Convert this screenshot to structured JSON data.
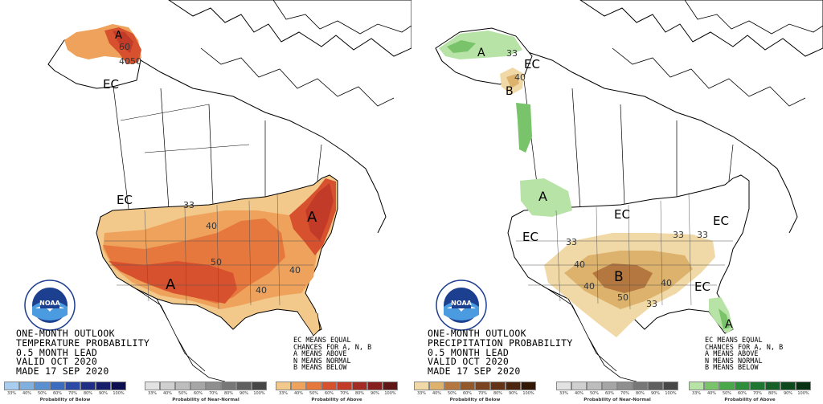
{
  "colors": {
    "above_33": "#f2c98b",
    "above_40": "#eea25c",
    "above_50": "#e6783d",
    "above_60": "#d8512f",
    "above_70": "#c23b28",
    "below_precip_33": "#f0d9a6",
    "below_precip_40": "#ddb26c",
    "below_precip_50": "#b4773f",
    "above_precip_33": "#b8e3a6",
    "above_precip_40": "#79c36a"
  },
  "left_panel": {
    "info_lines": [
      "ONE-MONTH OUTLOOK",
      "TEMPERATURE PROBABILITY",
      "0.5 MONTH LEAD",
      "VALID OCT 2020",
      "MADE 17 SEP 2020"
    ],
    "legend_lines": [
      "EC MEANS EQUAL",
      "CHANCES FOR A, N, B",
      "A MEANS ABOVE",
      "N MEANS NORMAL",
      "B MEANS BELOW"
    ],
    "map_labels": {
      "ec_alaska": "EC",
      "ec_west": "EC",
      "a_alaska": "A",
      "a_southwest": "A",
      "a_northeast": "A",
      "c33": "33",
      "c40": "40",
      "c50": "50",
      "c40b": "40",
      "c40c": "40",
      "ak40": "40",
      "ak50": "50",
      "ak60": "60"
    },
    "scales": [
      {
        "caption": "Probability of Below",
        "ticks": [
          "33%",
          "40%",
          "50%",
          "60%",
          "70%",
          "80%",
          "90%",
          "100%"
        ],
        "colors": [
          "#a9cdef",
          "#7fb0e0",
          "#5a8fd0",
          "#3c6cbf",
          "#2b4aa6",
          "#1f2f86",
          "#161d6b",
          "#0d1050"
        ]
      },
      {
        "caption": "Probability of Near-Normal",
        "ticks": [
          "33%",
          "40%",
          "50%",
          "60%",
          "70%",
          "80%",
          "90%",
          "100%"
        ],
        "colors": [
          "#e2e2e2",
          "#cfcfcf",
          "#bdbdbd",
          "#a6a6a6",
          "#8f8f8f",
          "#777777",
          "#5f5f5f",
          "#474747"
        ]
      },
      {
        "caption": "Probability of Above",
        "ticks": [
          "33%",
          "40%",
          "50%",
          "60%",
          "70%",
          "80%",
          "90%",
          "100%"
        ],
        "colors": [
          "#f2c98b",
          "#eea25c",
          "#e6783d",
          "#d8512f",
          "#c23b28",
          "#a42a24",
          "#86201f",
          "#5e1714"
        ]
      }
    ]
  },
  "right_panel": {
    "info_lines": [
      "ONE-MONTH OUTLOOK",
      "PRECIPITATION PROBABILITY",
      "0.5 MONTH LEAD",
      "VALID OCT 2020",
      "MADE 17 SEP 2020"
    ],
    "legend_lines": [
      "EC MEANS EQUAL",
      "CHANCES FOR A, N, B",
      "A MEANS ABOVE",
      "N MEANS NORMAL",
      "B MEANS BELOW"
    ],
    "map_labels": {
      "a_alaska": "A",
      "ec_alaska": "EC",
      "b_panhandle": "B",
      "a_northwest": "A",
      "ec_central": "EC",
      "ec_west": "EC",
      "ec_east": "EC",
      "ec_southeast": "EC",
      "b_south": "B",
      "a_florida": "A",
      "c33a": "33",
      "c40a": "40",
      "c33b": "33",
      "c40b": "40",
      "c33c": "33",
      "c40c": "40",
      "c50": "50",
      "c33d": "33",
      "ak33": "33",
      "ak40": "40"
    },
    "scales": [
      {
        "caption": "Probability of Below",
        "ticks": [
          "33%",
          "40%",
          "50%",
          "60%",
          "70%",
          "80%",
          "90%",
          "100%"
        ],
        "colors": [
          "#f0d9a6",
          "#ddb26c",
          "#b4773f",
          "#93592b",
          "#7a4420",
          "#623316",
          "#4b250f",
          "#321707"
        ]
      },
      {
        "caption": "Probability of Near-Normal",
        "ticks": [
          "33%",
          "40%",
          "50%",
          "60%",
          "70%",
          "80%",
          "90%",
          "100%"
        ],
        "colors": [
          "#e2e2e2",
          "#cfcfcf",
          "#bdbdbd",
          "#a6a6a6",
          "#8f8f8f",
          "#777777",
          "#5f5f5f",
          "#474747"
        ]
      },
      {
        "caption": "Probability of Above",
        "ticks": [
          "33%",
          "40%",
          "50%",
          "60%",
          "70%",
          "80%",
          "90%",
          "100%"
        ],
        "colors": [
          "#b8e3a6",
          "#79c36a",
          "#4aa84a",
          "#2d8f3a",
          "#1f7631",
          "#165f27",
          "#0e481d",
          "#073113"
        ]
      }
    ]
  }
}
